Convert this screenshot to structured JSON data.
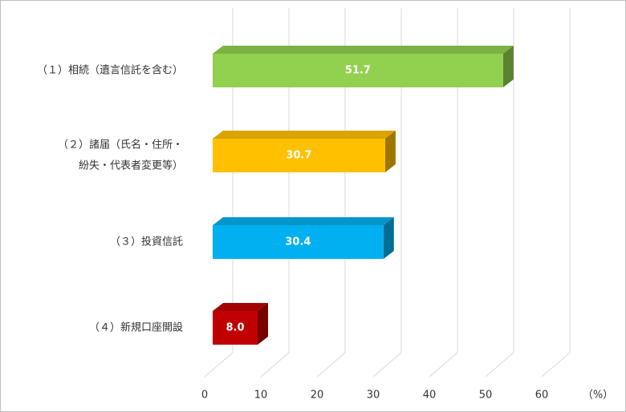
{
  "chart_data": {
    "type": "bar3d",
    "orientation": "horizontal",
    "categories": [
      [
        "（１）相続（遺言信託を含む）"
      ],
      [
        "（２）諸届（氏名・住所・",
        "紛失・代表者変更等）"
      ],
      [
        "（３）投資信託"
      ],
      [
        "（４）新規口座開設"
      ]
    ],
    "values": [
      51.7,
      30.7,
      30.4,
      8.0
    ],
    "value_labels": [
      "51.7",
      "30.7",
      "30.4",
      "8.0"
    ],
    "colors": [
      "#92d050",
      "#ffc000",
      "#00b0f0",
      "#c00000"
    ],
    "xlim": [
      0,
      60
    ],
    "xticks": [
      0,
      10,
      20,
      30,
      40,
      50,
      60
    ],
    "unit": "（%）",
    "grid": true
  }
}
